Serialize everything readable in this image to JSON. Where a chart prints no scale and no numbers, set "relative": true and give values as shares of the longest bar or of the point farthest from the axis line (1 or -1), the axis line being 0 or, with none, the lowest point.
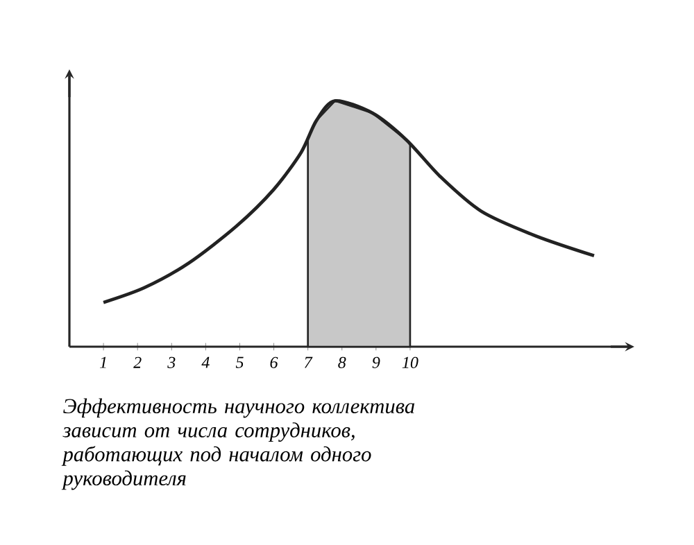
{
  "chart_data": {
    "type": "line",
    "relative": true,
    "x": [
      1.0,
      2.2,
      3.5,
      4.9,
      6.0,
      6.8,
      7.25,
      7.8,
      8.9,
      9.9,
      10.9,
      12.1,
      13.7,
      15.4
    ],
    "series": [
      {
        "type": "area",
        "color": "#c8c8c8",
        "x": [
          7,
          7.25,
          7.8,
          8.9,
          9.9,
          10
        ],
        "values": [
          0.85,
          0.92,
          1.0,
          0.95,
          0.84,
          0.82
        ]
      },
      {
        "color": "#222222",
        "values": [
          0.18,
          0.24,
          0.34,
          0.49,
          0.64,
          0.79,
          0.92,
          1.0,
          0.95,
          0.84,
          0.69,
          0.55,
          0.45,
          0.37
        ]
      }
    ],
    "xlim": [
      0,
      16.5
    ],
    "xticks": [
      1,
      2,
      3,
      4,
      5,
      6,
      7,
      8,
      9,
      10
    ],
    "marker": "none",
    "line_style": "solid",
    "annotations": [
      "Эффективность научного коллектива зависит от числа сотрудников, работающих под началом одного руководителя"
    ]
  }
}
